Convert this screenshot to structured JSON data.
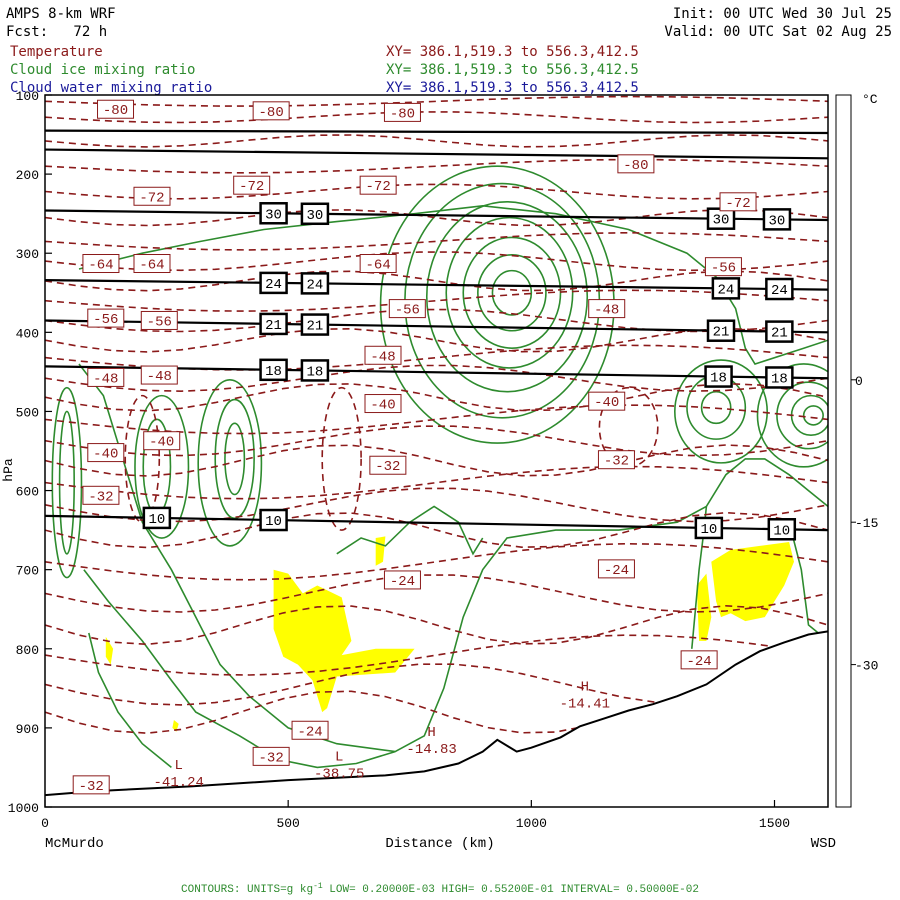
{
  "header": {
    "title": "AMPS 8-km WRF",
    "fcst": "Fcst:   72 h",
    "init": "Init: 00 UTC Wed 30 Jul 25",
    "valid": "Valid: 00 UTC Sat 02 Aug 25",
    "fields": [
      {
        "name": "Temperature",
        "xy": "XY= 386.1,519.3 to 556.3,412.5",
        "color": "#8b1a1a"
      },
      {
        "name": "Cloud ice mixing ratio",
        "xy": "XY= 386.1,519.3 to 556.3,412.5",
        "color": "#2e8b2e"
      },
      {
        "name": "Cloud water mixing ratio",
        "xy": "XY= 386.1,519.3 to 556.3,412.5",
        "color": "#1a1a9a"
      }
    ]
  },
  "footer": {
    "contours": "CONTOURS: UNITS=g kg",
    "units_sup": "-1",
    "contours_rest": " LOW= 0.20000E-03 HIGH= 0.55200E-01 INTERVAL= 0.50000E-02"
  },
  "colors": {
    "temperature": "#8b1a1a",
    "cloud_ice": "#2e8b2e",
    "cloud_water": "#ffff00",
    "warm": "#ff0000",
    "ground": "#000000"
  },
  "chart_data": {
    "type": "cross-section",
    "xlabel": "Distance (km)",
    "x_end_labels": [
      "McMurdo",
      "WSD"
    ],
    "x_ticks": [
      0,
      500,
      1000,
      1500
    ],
    "xlim": [
      0,
      1610
    ],
    "ylim": [
      1000,
      100
    ],
    "y_ticks": [
      100,
      200,
      300,
      400,
      500,
      600,
      700,
      800,
      900,
      1000
    ],
    "y_unit_partial": "hPa",
    "colorbar": {
      "unit": "°C",
      "levels": [
        "0",
        "-15",
        "-30"
      ],
      "bands": [
        {
          "from": 0,
          "to": 30,
          "color": "#ffffff"
        },
        {
          "from": -15,
          "to": 0,
          "color": "#ff0000"
        },
        {
          "from": -30,
          "to": -15,
          "color": "#ffff00"
        },
        {
          "from": -45,
          "to": -30,
          "color": "#ffffff"
        }
      ]
    },
    "isobars": [
      {
        "p": [
          145,
          148
        ],
        "labels": []
      },
      {
        "p": [
          169,
          180
        ],
        "labels": []
      },
      {
        "p": [
          246,
          258
        ],
        "label": "30",
        "at": [
          470,
          555,
          1390,
          1505
        ]
      },
      {
        "p": [
          334,
          346
        ],
        "label": "24",
        "at": [
          470,
          555,
          1400,
          1510
        ]
      },
      {
        "p": [
          385,
          400
        ],
        "label": "21",
        "at": [
          470,
          555,
          1390,
          1510
        ]
      },
      {
        "p": [
          443,
          458
        ],
        "label": "18",
        "at": [
          470,
          555,
          1385,
          1510
        ]
      },
      {
        "p": [
          632,
          650
        ],
        "label": "10",
        "at": [
          230,
          470,
          1365,
          1515
        ]
      }
    ],
    "temperature_labels": [
      {
        "text": "-80",
        "x": 145,
        "p": 118
      },
      {
        "text": "-80",
        "x": 465,
        "p": 120
      },
      {
        "text": "-80",
        "x": 735,
        "p": 122
      },
      {
        "text": "-80",
        "x": 1215,
        "p": 187
      },
      {
        "text": "-72",
        "x": 220,
        "p": 228
      },
      {
        "text": "-72",
        "x": 425,
        "p": 214
      },
      {
        "text": "-72",
        "x": 685,
        "p": 214
      },
      {
        "text": "-72",
        "x": 1425,
        "p": 235
      },
      {
        "text": "-64",
        "x": 115,
        "p": 313
      },
      {
        "text": "-64",
        "x": 220,
        "p": 313
      },
      {
        "text": "-64",
        "x": 685,
        "p": 313
      },
      {
        "text": "-56",
        "x": 125,
        "p": 382
      },
      {
        "text": "-56",
        "x": 235,
        "p": 385
      },
      {
        "text": "-56",
        "x": 745,
        "p": 370
      },
      {
        "text": "-56",
        "x": 1395,
        "p": 317
      },
      {
        "text": "-48",
        "x": 125,
        "p": 457
      },
      {
        "text": "-48",
        "x": 235,
        "p": 454
      },
      {
        "text": "-48",
        "x": 695,
        "p": 429
      },
      {
        "text": "-48",
        "x": 1155,
        "p": 370
      },
      {
        "text": "-40",
        "x": 125,
        "p": 552
      },
      {
        "text": "-40",
        "x": 240,
        "p": 537
      },
      {
        "text": "-40",
        "x": 695,
        "p": 490
      },
      {
        "text": "-40",
        "x": 1155,
        "p": 487
      },
      {
        "text": "-32",
        "x": 115,
        "p": 606
      },
      {
        "text": "-32",
        "x": 705,
        "p": 568
      },
      {
        "text": "-32",
        "x": 1175,
        "p": 561
      },
      {
        "text": "-24",
        "x": 735,
        "p": 713
      },
      {
        "text": "-24",
        "x": 1175,
        "p": 699
      },
      {
        "text": "-24",
        "x": 1345,
        "p": 814
      },
      {
        "text": "-24",
        "x": 545,
        "p": 903
      },
      {
        "text": "-32",
        "x": 465,
        "p": 936
      },
      {
        "text": "-32",
        "x": 95,
        "p": 972
      }
    ],
    "extrema": [
      {
        "kind": "H",
        "value": "-14.41",
        "x": 1110,
        "p": 853
      },
      {
        "kind": "H",
        "value": "-14.83",
        "x": 795,
        "p": 910
      },
      {
        "kind": "L",
        "value": "-38.75",
        "x": 605,
        "p": 941
      },
      {
        "kind": "L",
        "value": "-41.24",
        "x": 275,
        "p": 952
      }
    ]
  }
}
